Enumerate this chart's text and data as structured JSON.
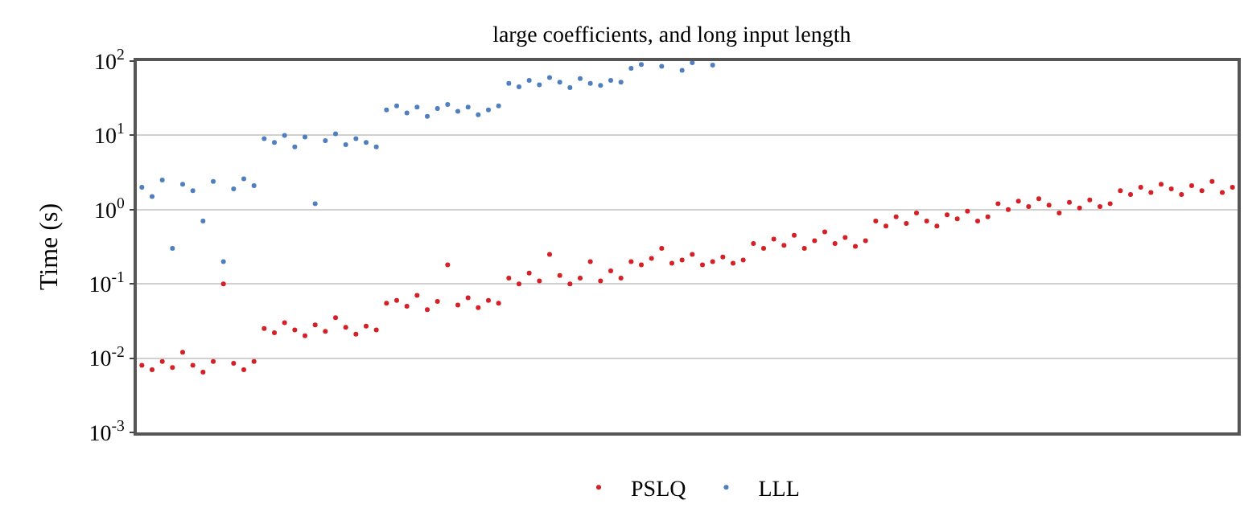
{
  "chart_data": {
    "type": "scatter",
    "title": "large coefficients, and long input length",
    "ylabel": "Time (s)",
    "categories": [
      null,
      null,
      null,
      null,
      null,
      null,
      null,
      null,
      null,
      null,
      null,
      null,
      null,
      null,
      null,
      null,
      null,
      null,
      null,
      null,
      null,
      null,
      null,
      null,
      null,
      null,
      null,
      null,
      null,
      null,
      null,
      null,
      null,
      null,
      null,
      null,
      null,
      null,
      null,
      null,
      null,
      null,
      null,
      null,
      null,
      null,
      null,
      null,
      null,
      null,
      null,
      null,
      null,
      null,
      null,
      null,
      null,
      null,
      null,
      null,
      null,
      null,
      null,
      null,
      null,
      null,
      null,
      null,
      null,
      null,
      null,
      null,
      null,
      null,
      null,
      null,
      null,
      null,
      null,
      null,
      null,
      null,
      null,
      null,
      null,
      null,
      null,
      null,
      null,
      null,
      null,
      null,
      null,
      null,
      null,
      null,
      null,
      null,
      null,
      null,
      null,
      null,
      null,
      null,
      null,
      null,
      null,
      null
    ],
    "series": [
      {
        "name": "PSLQ",
        "color": "#d42026",
        "values": [
          0.008,
          0.007,
          0.009,
          0.0075,
          0.012,
          0.008,
          0.0065,
          0.009,
          0.1,
          0.0085,
          0.007,
          0.009,
          0.025,
          0.022,
          0.03,
          0.024,
          0.02,
          0.028,
          0.023,
          0.035,
          0.026,
          0.021,
          0.027,
          0.024,
          0.055,
          0.06,
          0.05,
          0.07,
          0.045,
          0.058,
          0.18,
          0.052,
          0.065,
          0.048,
          0.06,
          0.055,
          0.12,
          0.1,
          0.14,
          0.11,
          0.25,
          0.13,
          0.1,
          0.12,
          0.2,
          0.11,
          0.15,
          0.12,
          0.2,
          0.18,
          0.22,
          0.3,
          0.19,
          0.21,
          0.25,
          0.18,
          0.2,
          0.23,
          0.19,
          0.21,
          0.35,
          0.3,
          0.4,
          0.33,
          0.45,
          0.3,
          0.38,
          0.5,
          0.35,
          0.42,
          0.32,
          0.38,
          0.7,
          0.6,
          0.8,
          0.65,
          0.9,
          0.7,
          0.6,
          0.85,
          0.75,
          0.95,
          0.7,
          0.8,
          1.2,
          1.0,
          1.3,
          1.1,
          1.4,
          1.15,
          0.9,
          1.25,
          1.05,
          1.35,
          1.1,
          1.2,
          1.8,
          1.6,
          2.0,
          1.7,
          2.2,
          1.9,
          1.6,
          2.1,
          1.8,
          2.4,
          1.7,
          2.0
        ]
      },
      {
        "name": "LLL",
        "color": "#4f7fbf",
        "values": [
          2.0,
          1.5,
          2.5,
          0.3,
          2.2,
          1.8,
          0.7,
          2.4,
          0.2,
          1.9,
          2.6,
          2.1,
          9,
          8,
          10,
          7,
          9.5,
          1.2,
          8.5,
          10.5,
          7.5,
          9,
          8,
          7,
          22,
          25,
          20,
          24,
          18,
          23,
          26,
          21,
          24,
          19,
          22,
          25,
          50,
          45,
          55,
          48,
          60,
          52,
          44,
          58,
          50,
          47,
          55,
          52,
          80,
          90,
          null,
          85,
          null,
          75,
          95,
          null,
          88,
          null,
          null,
          null,
          null,
          null,
          null,
          null,
          null,
          null,
          null,
          null,
          null,
          null,
          null,
          null,
          null,
          null,
          null,
          null,
          null,
          null,
          null,
          null,
          null,
          null,
          null,
          null,
          null,
          null,
          null,
          null,
          null,
          null,
          null,
          null,
          null,
          null,
          null,
          null,
          null,
          null,
          null,
          null,
          null,
          null,
          null,
          null,
          null,
          null,
          null,
          null
        ]
      }
    ],
    "log": "y",
    "ylim": [
      0.001,
      100
    ],
    "yticks": [
      {
        "value": 0.001,
        "label": "10$^{-3}$"
      },
      {
        "value": 0.01,
        "label": "10$^{-2}$"
      },
      {
        "value": 0.1,
        "label": "10$^{-1}$"
      },
      {
        "value": 1,
        "label": "10$^{0}$"
      },
      {
        "value": 10,
        "label": "10$^{1}$"
      },
      {
        "value": 100,
        "label": "10$^{2}$"
      }
    ],
    "grid": "y",
    "legend": "bottom",
    "marker": "circle"
  }
}
